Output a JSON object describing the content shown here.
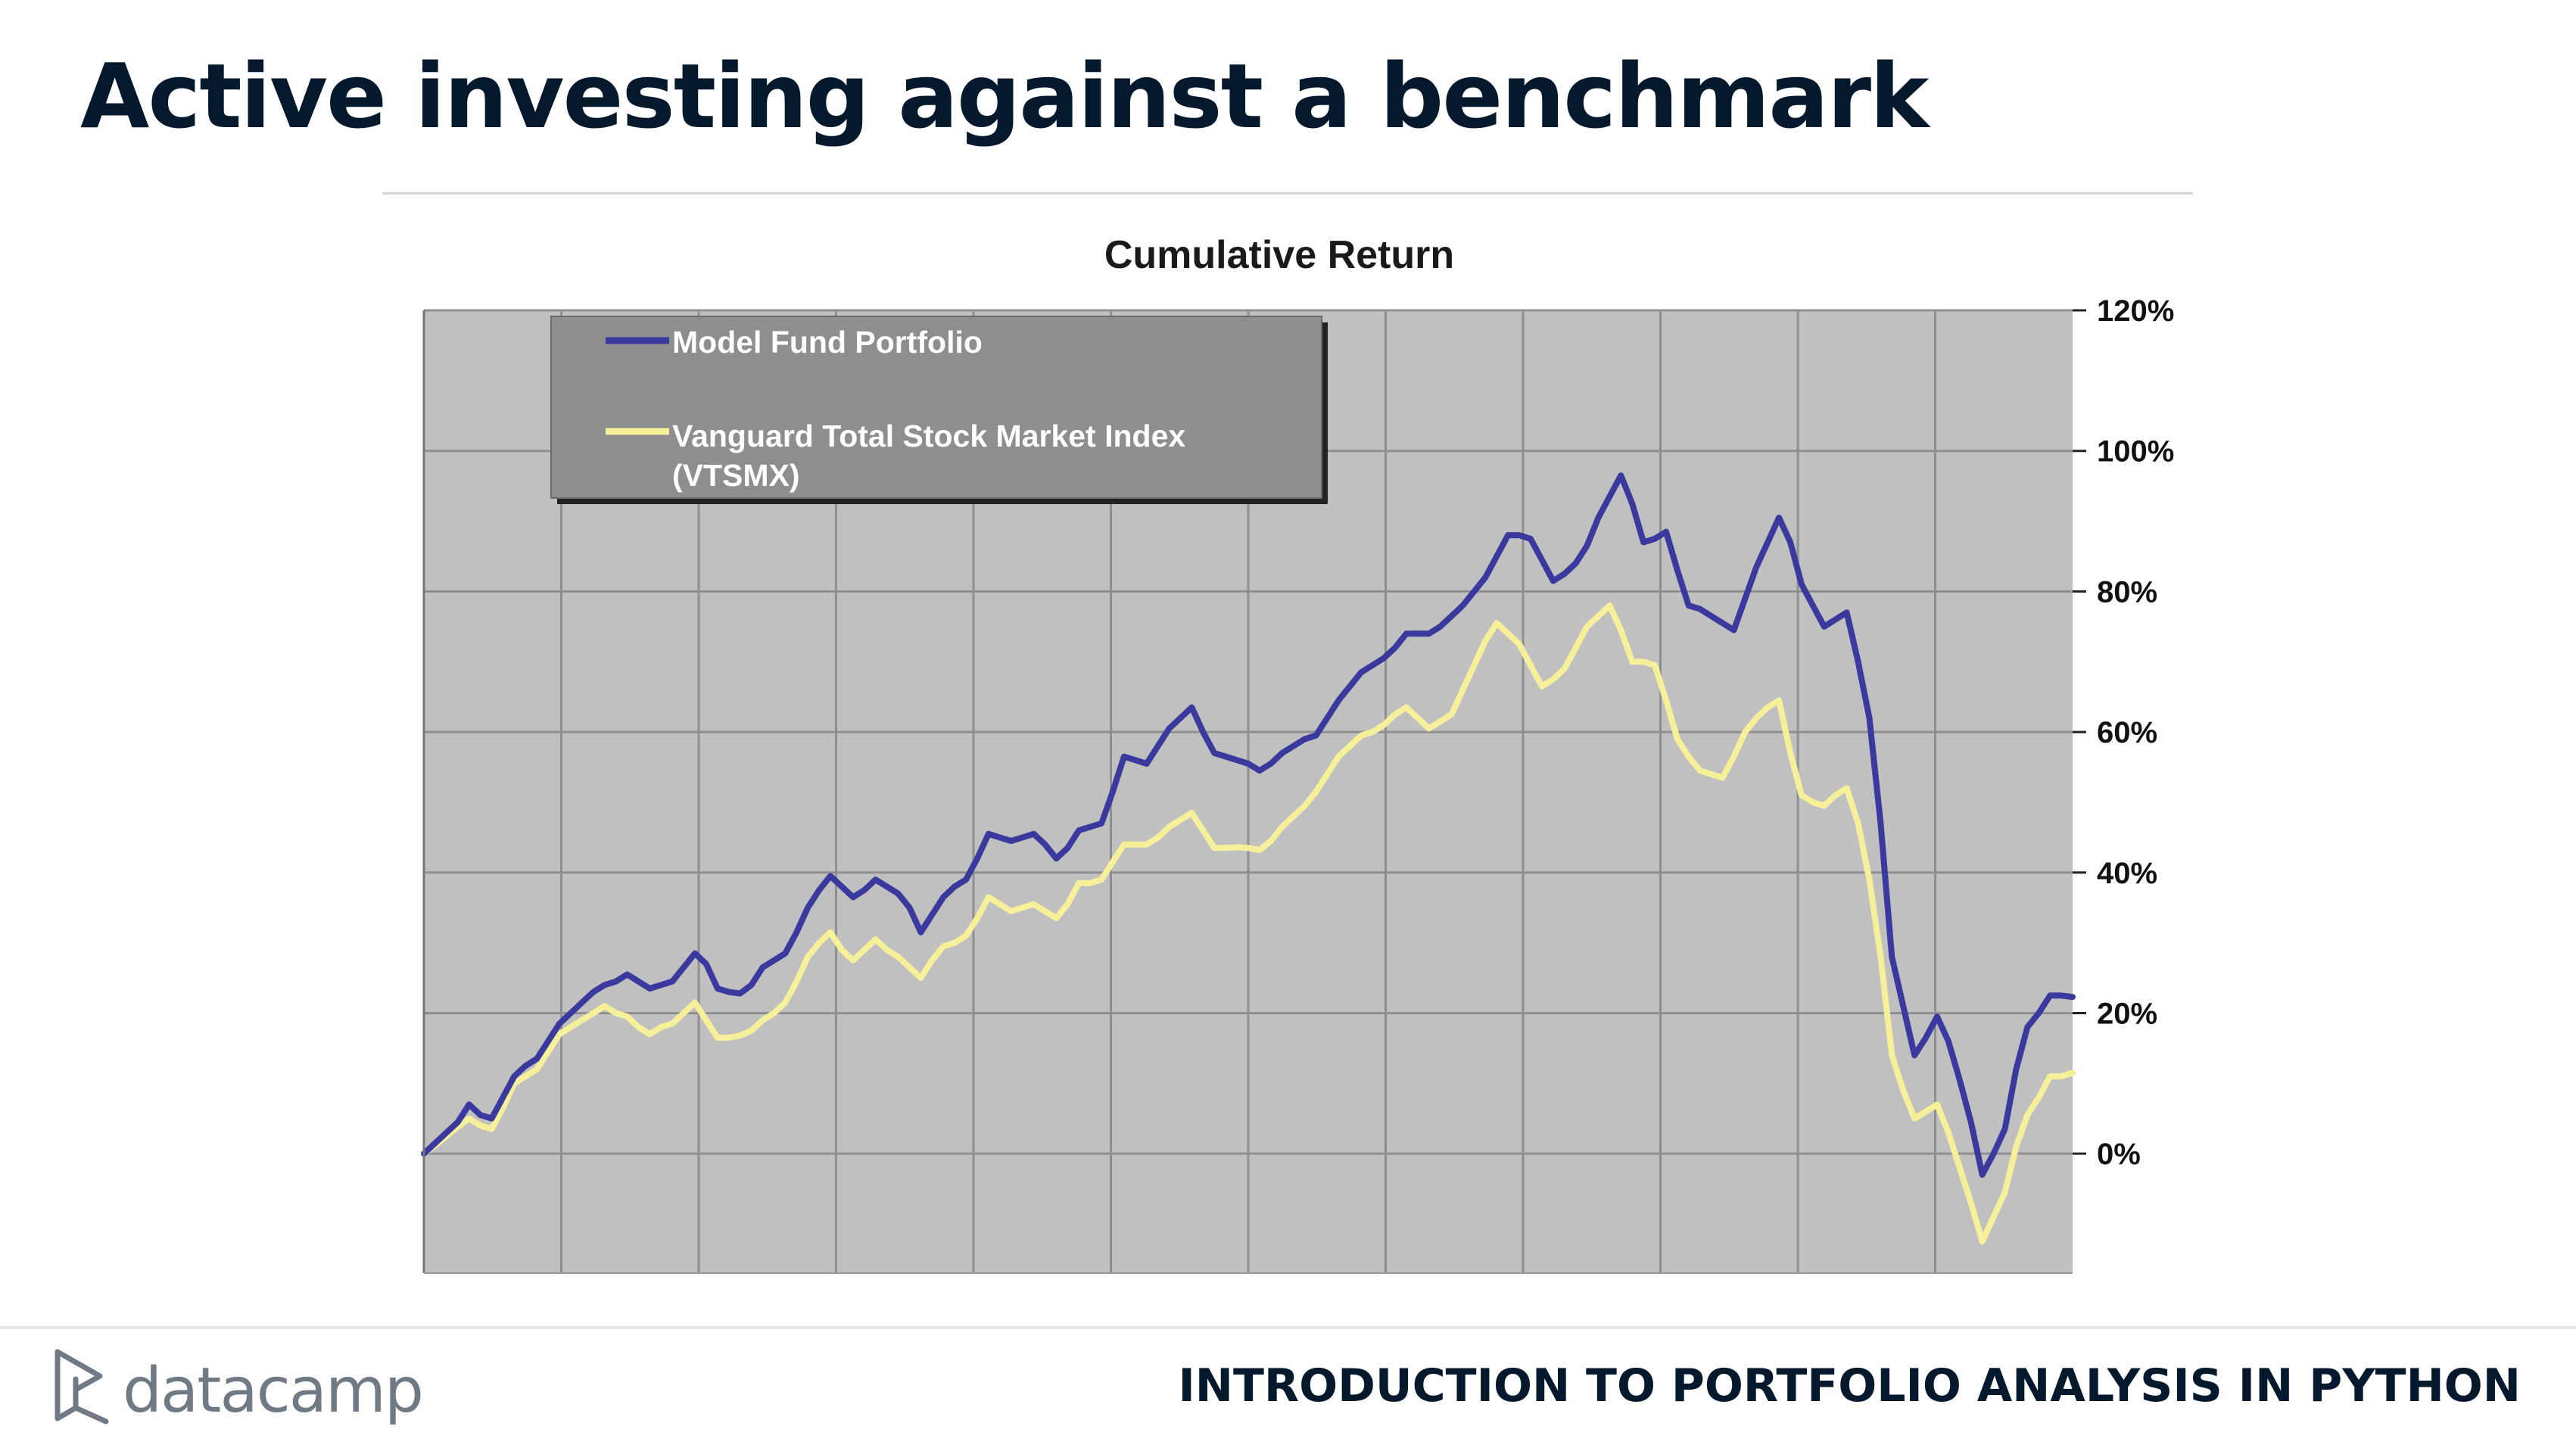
{
  "slide": {
    "title": "Active investing against a benchmark",
    "course_title": "INTRODUCTION TO PORTFOLIO ANALYSIS IN PYTHON",
    "logo_text": "datacamp"
  },
  "colors": {
    "title": "#05192d",
    "plot_background": "#c0c0c0",
    "legend_background": "#8e8e8e",
    "model_fund": "#3a3a9e",
    "vanguard": "#f7f09a"
  },
  "chart_data": {
    "type": "line",
    "title": "Cumulative Return",
    "y_axis_side": "right",
    "ylim": [
      -0.17,
      1.2
    ],
    "y_ticks": [
      0,
      0.2,
      0.4,
      0.6,
      0.8,
      1.0,
      1.2
    ],
    "y_tick_labels": [
      "0%",
      "20%",
      "40%",
      "60%",
      "80%",
      "100%",
      "120%"
    ],
    "x_count": 121,
    "x_gridlines": 12,
    "grid": true,
    "legend_position": "top-left",
    "series": [
      {
        "name": "Model Fund Portfolio",
        "color": "#3a3a9e",
        "values": [
          0.0,
          0.015,
          0.03,
          0.045,
          0.07,
          0.055,
          0.05,
          0.08,
          0.11,
          0.125,
          0.135,
          0.16,
          0.185,
          0.2,
          0.215,
          0.23,
          0.24,
          0.245,
          0.255,
          0.245,
          0.235,
          0.24,
          0.245,
          0.265,
          0.285,
          0.27,
          0.235,
          0.23,
          0.228,
          0.24,
          0.265,
          0.275,
          0.285,
          0.315,
          0.35,
          0.375,
          0.395,
          0.38,
          0.365,
          0.375,
          0.39,
          0.38,
          0.37,
          0.35,
          0.315,
          0.34,
          0.365,
          0.38,
          0.39,
          0.42,
          0.455,
          0.45,
          0.445,
          0.45,
          0.455,
          0.44,
          0.42,
          0.435,
          0.46,
          0.465,
          0.47,
          0.515,
          0.565,
          0.56,
          0.555,
          0.58,
          0.605,
          0.62,
          0.635,
          0.6,
          0.57,
          0.565,
          0.56,
          0.555,
          0.545,
          0.555,
          0.57,
          0.58,
          0.59,
          0.595,
          0.62,
          0.645,
          0.665,
          0.685,
          0.695,
          0.705,
          0.72,
          0.74,
          0.74,
          0.74,
          0.75,
          0.765,
          0.78,
          0.8,
          0.82,
          0.85,
          0.88,
          0.88,
          0.875,
          0.845,
          0.815,
          0.825,
          0.84,
          0.865,
          0.905,
          0.935,
          0.965,
          0.925,
          0.87,
          0.875,
          0.885,
          0.83,
          0.78,
          0.775,
          0.765,
          0.755,
          0.745,
          0.79,
          0.835,
          0.87,
          0.905,
          0.87,
          0.81,
          0.78,
          0.75,
          0.76,
          0.77,
          0.7,
          0.62,
          0.47,
          0.28,
          0.21,
          0.14,
          0.165,
          0.195,
          0.16,
          0.105,
          0.045,
          -0.03,
          0.0,
          0.035,
          0.12,
          0.18,
          0.2,
          0.225,
          0.225,
          0.223
        ]
      },
      {
        "name": "Vanguard Total Stock Market Index (VTSMX)",
        "color": "#f7f09a",
        "values": [
          0.0,
          0.012,
          0.025,
          0.038,
          0.05,
          0.04,
          0.035,
          0.065,
          0.1,
          0.11,
          0.12,
          0.145,
          0.17,
          0.18,
          0.19,
          0.2,
          0.21,
          0.2,
          0.195,
          0.18,
          0.17,
          0.18,
          0.185,
          0.2,
          0.215,
          0.19,
          0.165,
          0.165,
          0.168,
          0.175,
          0.19,
          0.2,
          0.215,
          0.245,
          0.28,
          0.3,
          0.315,
          0.29,
          0.275,
          0.29,
          0.305,
          0.29,
          0.28,
          0.265,
          0.25,
          0.275,
          0.295,
          0.3,
          0.31,
          0.335,
          0.365,
          0.355,
          0.345,
          0.35,
          0.355,
          0.345,
          0.335,
          0.355,
          0.385,
          0.385,
          0.39,
          0.415,
          0.44,
          0.44,
          0.44,
          0.45,
          0.465,
          0.475,
          0.485,
          0.46,
          0.435,
          0.435,
          0.436,
          0.435,
          0.432,
          0.445,
          0.465,
          0.48,
          0.495,
          0.515,
          0.54,
          0.565,
          0.58,
          0.595,
          0.6,
          0.61,
          0.625,
          0.635,
          0.62,
          0.605,
          0.615,
          0.625,
          0.66,
          0.695,
          0.73,
          0.755,
          0.74,
          0.725,
          0.695,
          0.665,
          0.675,
          0.69,
          0.72,
          0.75,
          0.765,
          0.78,
          0.745,
          0.7,
          0.7,
          0.695,
          0.645,
          0.59,
          0.565,
          0.545,
          0.54,
          0.535,
          0.565,
          0.6,
          0.62,
          0.635,
          0.645,
          0.57,
          0.51,
          0.5,
          0.495,
          0.51,
          0.52,
          0.47,
          0.39,
          0.28,
          0.14,
          0.09,
          0.05,
          0.06,
          0.07,
          0.03,
          -0.02,
          -0.07,
          -0.125,
          -0.09,
          -0.055,
          0.01,
          0.055,
          0.08,
          0.11,
          0.11,
          0.115
        ]
      }
    ]
  }
}
